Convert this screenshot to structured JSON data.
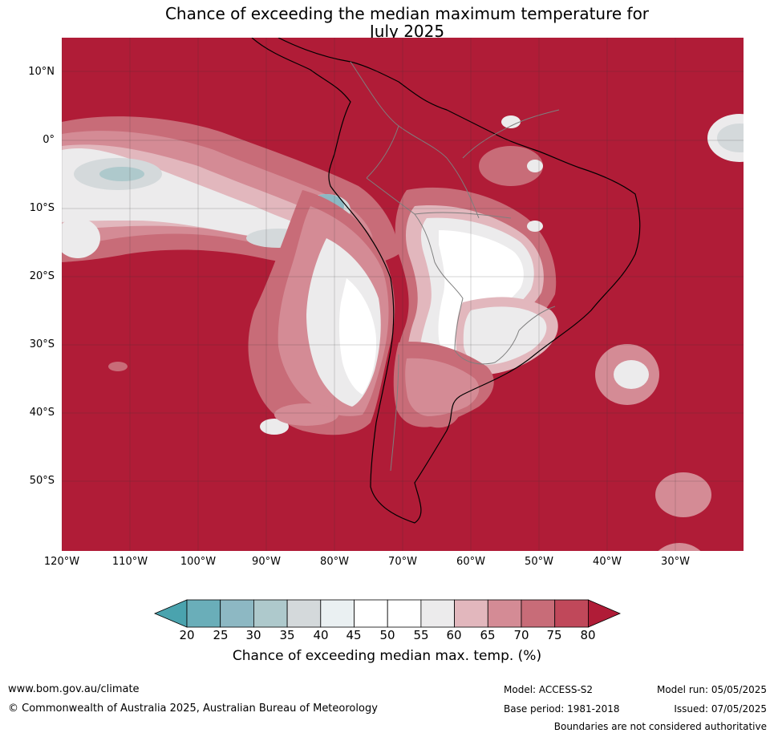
{
  "title_line1": "Chance of exceeding the median maximum temperature for",
  "title_line2": "July 2025",
  "lat_labels": [
    "10°N",
    "0°",
    "10°S",
    "20°S",
    "30°S",
    "40°S",
    "50°S"
  ],
  "lon_labels": [
    "120°W",
    "110°W",
    "100°W",
    "90°W",
    "80°W",
    "70°W",
    "60°W",
    "50°W",
    "40°W",
    "30°W"
  ],
  "colorbar": {
    "ticks": [
      "20",
      "25",
      "30",
      "35",
      "40",
      "45",
      "50",
      "55",
      "60",
      "65",
      "70",
      "75",
      "80"
    ],
    "colors": [
      "#4aa3ae",
      "#6aaeb9",
      "#8db8c3",
      "#aec9cc",
      "#d4d9db",
      "#eaf0f2",
      "#ffffff",
      "#ffffff",
      "#ecebec",
      "#e2b7bd",
      "#d48b95",
      "#c86c78",
      "#c0485a",
      "#b01c37"
    ],
    "label": "Chance of exceeding median max. temp. (%)"
  },
  "colors": {
    "dominant": "#b01c37",
    "land_border": "#000000",
    "country_border": "#7f7f7f",
    "grid": "#333333"
  },
  "footer": {
    "website": "www.bom.gov.au/climate",
    "copyright": "© Commonwealth of Australia 2025, Australian Bureau of Meteorology",
    "model": "Model: ACCESS-S2",
    "base_period": "Base period: 1981-2018",
    "model_run": "Model run: 05/05/2025",
    "issued": "Issued: 07/05/2025",
    "disclaimer": "Boundaries are not considered authoritative"
  }
}
